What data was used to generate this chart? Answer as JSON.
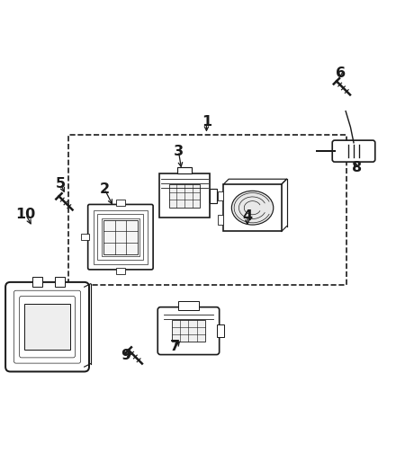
{
  "background_color": "#ffffff",
  "line_color": "#1a1a1a"
}
